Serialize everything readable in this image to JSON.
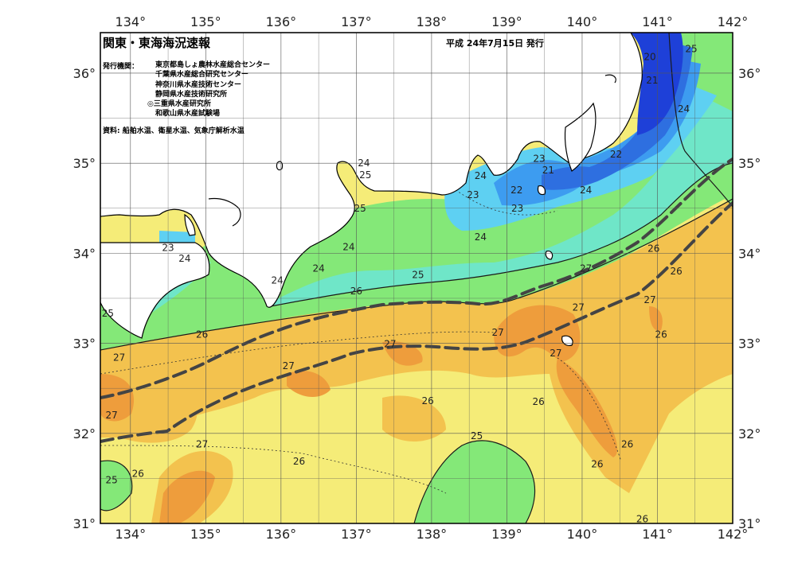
{
  "title": "関東・東海海況速報",
  "date": "平成 24年7月15日 発行",
  "issuer_label": "発行機関：",
  "issuers": [
    "東京都島しょ農林水産総合センター",
    "千葉県水産総合研究センター",
    "神奈川県水産技術センター",
    "静岡県水産技術研究所",
    "◎三重県水産研究所",
    "和歌山県水産試験場"
  ],
  "sources": "資料: 船舶水温、衛星水温、気象庁解析水温",
  "longitudes": [
    "134°",
    "135°",
    "136°",
    "137°",
    "138°",
    "139°",
    "140°",
    "141°",
    "142°"
  ],
  "latitudes": [
    "36°",
    "35°",
    "34°",
    "33°",
    "32°",
    "31°"
  ],
  "colors": {
    "c20": "#1e40d8",
    "c21": "#2e6fe0",
    "c22": "#3d9cf0",
    "c23": "#5ed0f2",
    "c24": "#6fe6c8",
    "c25": "#84e878",
    "c26": "#f5ec78",
    "c27": "#f3c24e",
    "c28": "#ee9d3c",
    "land": "#ffffff",
    "kuroshio": "#444444"
  },
  "temp_labels": [
    {
      "t": "20",
      "lon": 140.9,
      "lat": 36.18
    },
    {
      "t": "21",
      "lon": 140.93,
      "lat": 35.92
    },
    {
      "t": "25",
      "lon": 141.45,
      "lat": 36.27
    },
    {
      "t": "24",
      "lon": 141.35,
      "lat": 35.6
    },
    {
      "t": "22",
      "lon": 140.45,
      "lat": 35.1
    },
    {
      "t": "23",
      "lon": 139.43,
      "lat": 35.05
    },
    {
      "t": "21",
      "lon": 139.55,
      "lat": 34.92
    },
    {
      "t": "22",
      "lon": 139.13,
      "lat": 34.7
    },
    {
      "t": "23",
      "lon": 139.14,
      "lat": 34.5
    },
    {
      "t": "24",
      "lon": 140.05,
      "lat": 34.7
    },
    {
      "t": "24",
      "lon": 138.65,
      "lat": 34.86
    },
    {
      "t": "23",
      "lon": 138.55,
      "lat": 34.65
    },
    {
      "t": "24",
      "lon": 137.1,
      "lat": 35.0
    },
    {
      "t": "25",
      "lon": 137.12,
      "lat": 34.87
    },
    {
      "t": "25",
      "lon": 137.05,
      "lat": 34.5
    },
    {
      "t": "23",
      "lon": 134.5,
      "lat": 34.06
    },
    {
      "t": "24",
      "lon": 134.72,
      "lat": 33.94
    },
    {
      "t": "24",
      "lon": 136.9,
      "lat": 34.07
    },
    {
      "t": "24",
      "lon": 138.65,
      "lat": 34.18
    },
    {
      "t": "24",
      "lon": 136.5,
      "lat": 33.83
    },
    {
      "t": "24",
      "lon": 135.95,
      "lat": 33.7
    },
    {
      "t": "25",
      "lon": 137.82,
      "lat": 33.76
    },
    {
      "t": "26",
      "lon": 137.0,
      "lat": 33.58
    },
    {
      "t": "27",
      "lon": 140.05,
      "lat": 33.83
    },
    {
      "t": "26",
      "lon": 140.95,
      "lat": 34.05
    },
    {
      "t": "26",
      "lon": 141.25,
      "lat": 33.8
    },
    {
      "t": "27",
      "lon": 139.95,
      "lat": 33.4
    },
    {
      "t": "27",
      "lon": 140.9,
      "lat": 33.48
    },
    {
      "t": "27",
      "lon": 138.88,
      "lat": 33.12
    },
    {
      "t": "26",
      "lon": 141.05,
      "lat": 33.1
    },
    {
      "t": "25",
      "lon": 133.7,
      "lat": 33.33
    },
    {
      "t": "26",
      "lon": 134.95,
      "lat": 33.1
    },
    {
      "t": "27",
      "lon": 137.45,
      "lat": 32.99
    },
    {
      "t": "27",
      "lon": 139.65,
      "lat": 32.89
    },
    {
      "t": "27",
      "lon": 133.85,
      "lat": 32.84
    },
    {
      "t": "27",
      "lon": 136.1,
      "lat": 32.75
    },
    {
      "t": "27",
      "lon": 133.75,
      "lat": 32.2
    },
    {
      "t": "26",
      "lon": 137.95,
      "lat": 32.36
    },
    {
      "t": "26",
      "lon": 139.42,
      "lat": 32.35
    },
    {
      "t": "25",
      "lon": 138.6,
      "lat": 31.97
    },
    {
      "t": "27",
      "lon": 134.95,
      "lat": 31.88
    },
    {
      "t": "26",
      "lon": 140.6,
      "lat": 31.88
    },
    {
      "t": "26",
      "lon": 136.24,
      "lat": 31.69
    },
    {
      "t": "26",
      "lon": 140.2,
      "lat": 31.66
    },
    {
      "t": "25",
      "lon": 133.75,
      "lat": 31.48
    },
    {
      "t": "26",
      "lon": 134.1,
      "lat": 31.55
    },
    {
      "t": "26",
      "lon": 140.8,
      "lat": 31.05
    }
  ]
}
